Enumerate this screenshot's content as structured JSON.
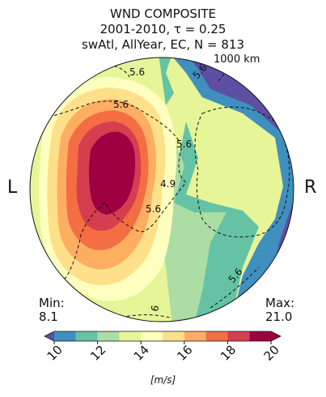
{
  "title": {
    "line1": "WND COMPOSITE",
    "line2": "2001-2010, τ = 0.25",
    "line3": "swAtl, AllYear, EC, N = 813"
  },
  "scale_label": "1000 km",
  "left_label": "L",
  "right_label": "R",
  "stats": {
    "min_label": "Min:",
    "min_value": "8.1",
    "max_label": "Max:",
    "max_value": "21.0"
  },
  "chart_data": {
    "type": "heatmap",
    "title": "WND COMPOSITE",
    "projection": "polar disk",
    "colorbar": {
      "levels": [
        10,
        11,
        12,
        13,
        14,
        15,
        16,
        17,
        18,
        19,
        20
      ],
      "colors": [
        "#5e4fa2",
        "#3f8fbf",
        "#66c2a5",
        "#abdda4",
        "#e6f598",
        "#ffffbf",
        "#fee08b",
        "#fdae61",
        "#f46d43",
        "#d53e4f",
        "#9e0142"
      ],
      "tick_labels": [
        "10",
        "12",
        "14",
        "16",
        "18",
        "20"
      ],
      "extend": "both",
      "unit_label": "[m/s]"
    },
    "contour_labels": [
      "5.6",
      "5.6",
      "5.6",
      "5.6",
      "4.9",
      "5.6",
      "5.6",
      "6"
    ],
    "min": 8.1,
    "max": 21.0
  }
}
